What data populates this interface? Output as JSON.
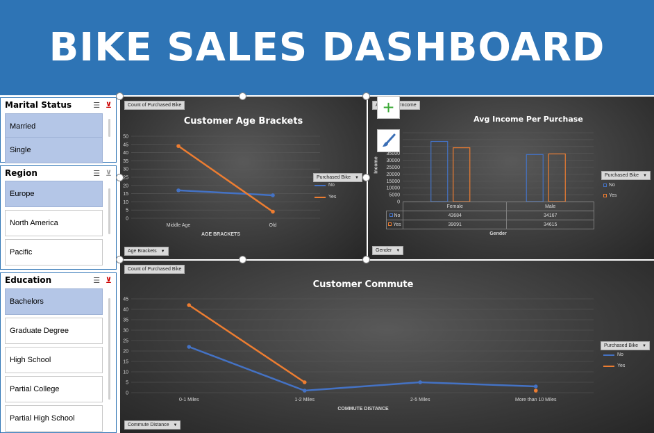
{
  "header": {
    "title": "BIKE SALES DASHBOARD"
  },
  "colors": {
    "header_bg": "#2e74b5",
    "no": "#4472c4",
    "yes": "#ed7d31",
    "selected": "#b4c6e7"
  },
  "slicers": {
    "marital": {
      "title": "Marital Status",
      "items": [
        "Married",
        "Single"
      ]
    },
    "region": {
      "title": "Region",
      "items": [
        "Europe",
        "North America",
        "Pacific"
      ]
    },
    "education": {
      "title": "Education",
      "items": [
        "Bachelors",
        "Graduate Degree",
        "High School",
        "Partial College",
        "Partial High School"
      ]
    }
  },
  "icons": {
    "multiselect": "multi-select-icon",
    "clear": "clear-filter-icon",
    "add": "plus-icon",
    "style": "brush-icon"
  },
  "age_chart": {
    "value_button": "Count of Purchased Bike",
    "axis_button": "Age Brackets",
    "legend_button": "Purchased Bike",
    "chart_data": {
      "type": "line",
      "title": "Customer Age Brackets",
      "xlabel": "AGE BRACKETS",
      "ylabel": "",
      "categories": [
        "Middle Age",
        "Old"
      ],
      "series": [
        {
          "name": "No",
          "values": [
            17,
            14
          ]
        },
        {
          "name": "Yes",
          "values": [
            44,
            4
          ]
        }
      ],
      "ylim": [
        0,
        50
      ],
      "yticks": [
        "50",
        "45",
        "40",
        "35",
        "30",
        "25",
        "20",
        "15",
        "10",
        "5",
        "0"
      ],
      "legend": "right"
    }
  },
  "income_chart": {
    "value_button": "Average of Income",
    "axis_button": "Gender",
    "legend_button": "Purchased Bike",
    "chart_data": {
      "type": "bar",
      "title": "Avg Income Per Purchase",
      "xlabel": "Gender",
      "ylabel": "Income",
      "categories": [
        "Female",
        "Male"
      ],
      "series": [
        {
          "name": "No",
          "values": [
            43684,
            34167
          ]
        },
        {
          "name": "Yes",
          "values": [
            39091,
            34615
          ]
        }
      ],
      "ylim": [
        0,
        50000
      ],
      "yticks": [
        "50000",
        "45000",
        "40000",
        "35000",
        "30000",
        "25000",
        "20000",
        "15000",
        "10000",
        "5000",
        "0"
      ],
      "table": {
        "rows": [
          {
            "label": "No",
            "values": [
              "43684",
              "34167"
            ]
          },
          {
            "label": "Yes",
            "values": [
              "39091",
              "34615"
            ]
          }
        ]
      },
      "legend": "right"
    }
  },
  "commute_chart": {
    "value_button": "Count of Purchased Bike",
    "axis_button": "Commute Distance",
    "legend_button": "Purchased Bike",
    "chart_data": {
      "type": "line",
      "title": "Customer Commute",
      "xlabel": "COMMUTE DISTANCE",
      "ylabel": "",
      "categories": [
        "0-1 Miles",
        "1-2 Miles",
        "2-5 Miles",
        "More than 10 Miles"
      ],
      "series": [
        {
          "name": "No",
          "values": [
            22,
            1,
            5,
            3
          ]
        },
        {
          "name": "Yes",
          "values": [
            42,
            5,
            null,
            1
          ]
        }
      ],
      "ylim": [
        0,
        45
      ],
      "yticks": [
        "45",
        "40",
        "35",
        "30",
        "25",
        "20",
        "15",
        "10",
        "5",
        "0"
      ],
      "legend": "right"
    }
  }
}
